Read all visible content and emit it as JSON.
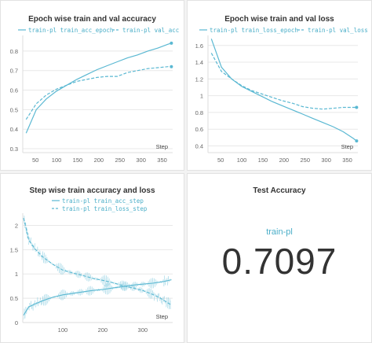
{
  "colors": {
    "series": "#5ab8d2",
    "grid": "#e8e8e8",
    "axis_text": "#666666"
  },
  "chart_data": [
    {
      "type": "line",
      "title": "Epoch wise train and val accuracy",
      "xlabel": "Step",
      "xlim": [
        20,
        375
      ],
      "ylim": [
        0.28,
        0.88
      ],
      "xticks": [
        50,
        100,
        150,
        200,
        250,
        300,
        350
      ],
      "yticks": [
        0.3,
        0.4,
        0.5,
        0.6,
        0.7,
        0.8
      ],
      "ytick_labels": [
        "0.3",
        "0.4",
        "0.5",
        "0.6",
        "0.7",
        "0.8"
      ],
      "legend_position": "top",
      "series": [
        {
          "name": "train-pl train_acc_epoch",
          "style": "solid",
          "x": [
            28,
            52,
            76,
            100,
            124,
            148,
            172,
            196,
            220,
            244,
            268,
            292,
            316,
            340,
            364,
            372
          ],
          "y": [
            0.38,
            0.5,
            0.555,
            0.595,
            0.625,
            0.655,
            0.68,
            0.705,
            0.725,
            0.745,
            0.765,
            0.78,
            0.8,
            0.815,
            0.835,
            0.84
          ]
        },
        {
          "name": "train-pl val_acc",
          "style": "dashed",
          "x": [
            28,
            52,
            76,
            100,
            124,
            148,
            172,
            196,
            220,
            244,
            268,
            292,
            316,
            340,
            364,
            372
          ],
          "y": [
            0.45,
            0.53,
            0.575,
            0.605,
            0.625,
            0.645,
            0.655,
            0.665,
            0.67,
            0.67,
            0.69,
            0.7,
            0.71,
            0.715,
            0.72,
            0.72
          ]
        }
      ]
    },
    {
      "type": "line",
      "title": "Epoch wise train and val loss",
      "xlabel": "Step",
      "xlim": [
        20,
        375
      ],
      "ylim": [
        0.32,
        1.72
      ],
      "xticks": [
        50,
        100,
        150,
        200,
        250,
        300,
        350
      ],
      "yticks": [
        0.4,
        0.6,
        0.8,
        1.0,
        1.2,
        1.4,
        1.6
      ],
      "ytick_labels": [
        "0.4",
        "0.6",
        "0.8",
        "1",
        "1.2",
        "1.4",
        "1.6"
      ],
      "legend_position": "top",
      "series": [
        {
          "name": "train-pl train_loss_epoch",
          "style": "solid",
          "x": [
            28,
            52,
            76,
            100,
            124,
            148,
            172,
            196,
            220,
            244,
            268,
            292,
            316,
            340,
            364,
            372
          ],
          "y": [
            1.68,
            1.34,
            1.2,
            1.11,
            1.05,
            0.99,
            0.93,
            0.88,
            0.83,
            0.78,
            0.73,
            0.68,
            0.63,
            0.57,
            0.49,
            0.46
          ]
        },
        {
          "name": "train-pl val_loss",
          "style": "dashed",
          "x": [
            28,
            52,
            76,
            100,
            124,
            148,
            172,
            196,
            220,
            244,
            268,
            292,
            316,
            340,
            364,
            372
          ],
          "y": [
            1.51,
            1.29,
            1.2,
            1.12,
            1.06,
            1.02,
            0.98,
            0.94,
            0.91,
            0.87,
            0.85,
            0.84,
            0.85,
            0.86,
            0.86,
            0.86
          ]
        }
      ]
    },
    {
      "type": "line",
      "title": "Step wise train accuracy and loss",
      "xlabel": "Step",
      "xlim": [
        0,
        375
      ],
      "ylim": [
        0,
        2.25
      ],
      "xticks": [
        100,
        200,
        300
      ],
      "yticks": [
        0,
        0.5,
        1.0,
        1.5,
        2.0
      ],
      "ytick_labels": [
        "0",
        "0.5",
        "1",
        "1.5",
        "2"
      ],
      "legend_position": "top",
      "series": [
        {
          "name": "train-pl train_acc_step",
          "style": "solid",
          "x": [
            2,
            15,
            30,
            50,
            75,
            100,
            125,
            150,
            175,
            200,
            225,
            250,
            275,
            300,
            325,
            350,
            372
          ],
          "y": [
            0.15,
            0.32,
            0.38,
            0.45,
            0.52,
            0.57,
            0.6,
            0.63,
            0.66,
            0.68,
            0.71,
            0.74,
            0.77,
            0.79,
            0.81,
            0.84,
            0.88
          ]
        },
        {
          "name": "train-pl train_loss_step",
          "style": "dashed",
          "x": [
            2,
            8,
            15,
            30,
            50,
            75,
            100,
            125,
            150,
            175,
            200,
            225,
            250,
            275,
            300,
            325,
            345,
            360,
            372
          ],
          "y": [
            2.15,
            1.95,
            1.7,
            1.52,
            1.35,
            1.2,
            1.08,
            1.02,
            0.97,
            0.91,
            0.87,
            0.82,
            0.76,
            0.71,
            0.66,
            0.58,
            0.5,
            0.42,
            0.36
          ]
        }
      ]
    }
  ],
  "test_panel": {
    "title": "Test Accuracy",
    "run_name": "train-pl",
    "value": "0.7097"
  }
}
